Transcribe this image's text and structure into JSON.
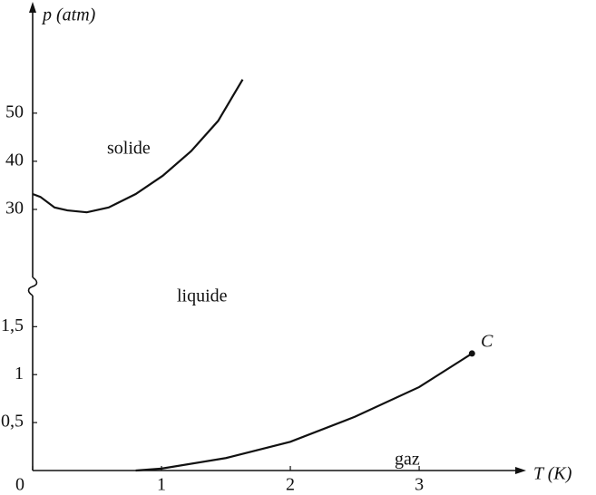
{
  "chart_data": [
    {
      "type": "line",
      "ylabel": "p (atm)",
      "annotation": "solide",
      "ylim": [
        17,
        72
      ],
      "yticks": [
        30,
        40,
        50
      ],
      "series": [
        {
          "color": "#111111",
          "x": [
            0,
            0.06,
            0.17,
            0.27,
            0.42,
            0.59,
            0.8,
            1.01,
            1.23,
            1.44,
            1.63
          ],
          "values": [
            33.2,
            32.6,
            30.4,
            29.8,
            29.4,
            30.4,
            33.2,
            37,
            42.1,
            48.4,
            57
          ]
        }
      ]
    },
    {
      "type": "line",
      "xlabel": "T (K)",
      "annotations": [
        "liquide",
        "gaz",
        "C"
      ],
      "xlim": [
        0,
        3.76
      ],
      "xticks": [
        0,
        1,
        2,
        3
      ],
      "ylim": [
        0,
        1.9
      ],
      "yticks": [
        {
          "value": 0.5,
          "label": "0,5"
        },
        1,
        {
          "value": 1.5,
          "label": "1,5"
        }
      ],
      "series": [
        {
          "color": "#111111",
          "x": [
            0.8,
            1.0,
            1.5,
            2.0,
            2.5,
            3.0,
            3.41
          ],
          "values": [
            0,
            0.02,
            0.13,
            0.3,
            0.56,
            0.87,
            1.22
          ]
        }
      ]
    }
  ]
}
